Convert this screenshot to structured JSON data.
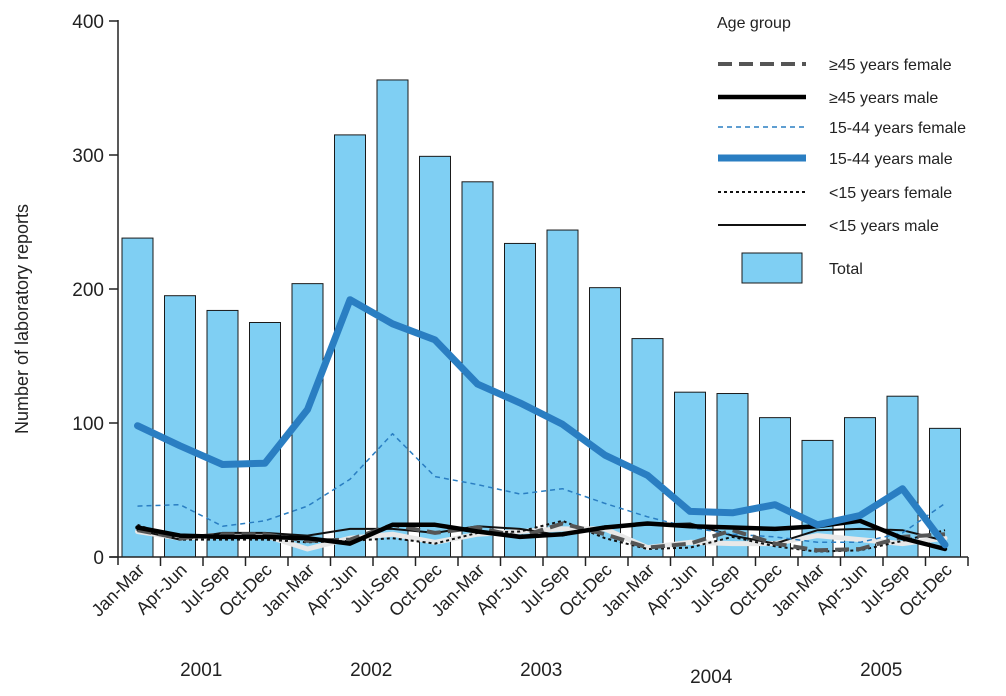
{
  "chart_data": {
    "type": "bar",
    "title": "",
    "xlabel": "",
    "ylabel": "Number of laboratory reports",
    "ylim": [
      0,
      400
    ],
    "yticks": [
      0,
      100,
      200,
      300,
      400
    ],
    "grid": false,
    "legend_position": "top-right",
    "legend_title": "Age group",
    "categories": [
      "Jan-Mar",
      "Apr-Jun",
      "Jul-Sep",
      "Oct-Dec",
      "Jan-Mar",
      "Apr-Jun",
      "Jul-Sep",
      "Oct-Dec",
      "Jan-Mar",
      "Apr-Jun",
      "Jul-Sep",
      "Oct-Dec",
      "Jan-Mar",
      "Apr-Jun",
      "Jul-Sep",
      "Oct-Dec",
      "Jan-Mar",
      "Apr-Jun",
      "Jul-Sep",
      "Oct-Dec"
    ],
    "years": [
      {
        "label": "2001",
        "start": 0,
        "end": 3
      },
      {
        "label": "2002",
        "start": 4,
        "end": 7
      },
      {
        "label": "2003",
        "start": 8,
        "end": 11
      },
      {
        "label": "2004",
        "start": 12,
        "end": 15
      },
      {
        "label": "2005",
        "start": 16,
        "end": 19
      }
    ],
    "bar_series": {
      "name": "Total",
      "color": "#7fcff3",
      "values": [
        238,
        195,
        184,
        175,
        204,
        315,
        356,
        299,
        280,
        234,
        244,
        201,
        163,
        123,
        122,
        104,
        87,
        104,
        120,
        96
      ]
    },
    "line_series": [
      {
        "name": "≥45 years female",
        "color": "#555555",
        "style": "long-dash",
        "values": [
          20,
          14,
          17,
          17,
          12,
          13,
          24,
          18,
          22,
          15,
          25,
          17,
          7,
          10,
          20,
          10,
          5,
          6,
          15,
          17
        ]
      },
      {
        "name": "≥45 years male",
        "color": "#000000",
        "style": "solid-thick",
        "values": [
          22,
          16,
          15,
          15,
          14,
          10,
          24,
          24,
          19,
          15,
          17,
          22,
          25,
          23,
          22,
          21,
          23,
          27,
          14,
          6
        ]
      },
      {
        "name": "15-44 years female",
        "color": "#2a7ec2",
        "style": "short-dash",
        "values": [
          38,
          39,
          23,
          27,
          38,
          58,
          92,
          60,
          54,
          47,
          51,
          40,
          30,
          22,
          17,
          15,
          11,
          11,
          18,
          40
        ]
      },
      {
        "name": "15-44 years male",
        "color": "#2a7ec2",
        "style": "solid-very-thick",
        "values": [
          98,
          83,
          69,
          70,
          110,
          192,
          174,
          162,
          129,
          115,
          99,
          76,
          61,
          34,
          33,
          39,
          24,
          31,
          51,
          9
        ]
      },
      {
        "name": "<15 years female",
        "color": "#111111",
        "style": "dotted",
        "values": [
          24,
          13,
          13,
          13,
          11,
          12,
          14,
          10,
          18,
          19,
          27,
          14,
          6,
          7,
          15,
          8,
          4,
          5,
          12,
          20
        ]
      },
      {
        "name": "<15 years male",
        "color": "#111111",
        "style": "solid-thin",
        "values": [
          20,
          13,
          18,
          18,
          16,
          21,
          21,
          18,
          23,
          21,
          16,
          23,
          24,
          25,
          16,
          10,
          20,
          21,
          20,
          12
        ]
      }
    ],
    "extra_series": {
      "color": "#e8e8e8",
      "values": [
        19,
        14,
        16,
        16,
        6,
        14,
        17,
        11,
        17,
        19,
        21,
        21,
        7,
        11,
        10,
        10,
        16,
        13,
        10,
        14
      ]
    }
  }
}
